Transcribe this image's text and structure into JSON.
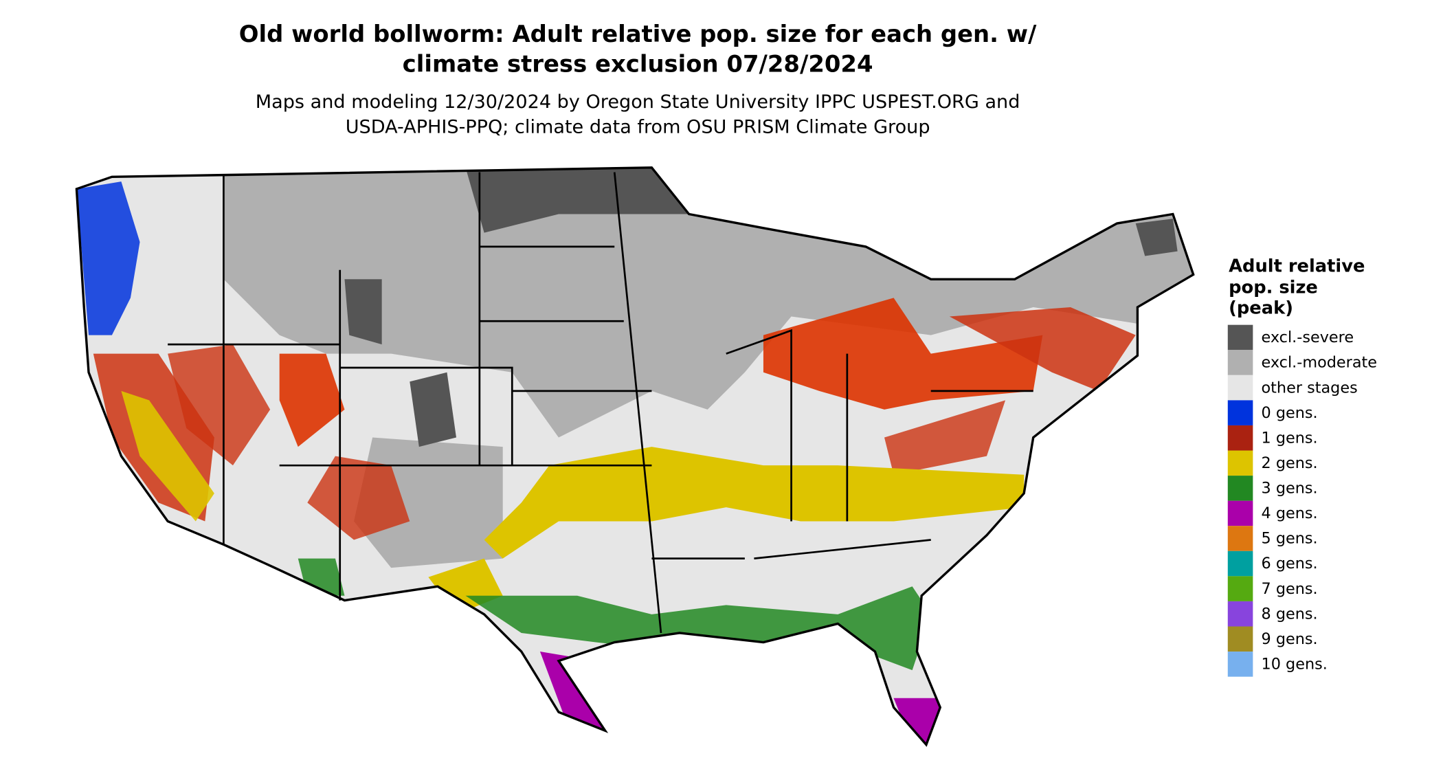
{
  "title_lines": [
    "Old world bollworm: Adult relative pop. size for each gen. w/",
    "climate stress exclusion 07/28/2024"
  ],
  "subtitle_lines": [
    "Maps and modeling 12/30/2024 by Oregon State University IPPC USPEST.ORG and",
    "USDA-APHIS-PPQ; climate data from OSU PRISM Climate Group"
  ],
  "legend": {
    "title_lines": [
      "Adult relative",
      "pop. size",
      "(peak)"
    ],
    "items": [
      {
        "label": "excl.-severe",
        "color": "#555555"
      },
      {
        "label": "excl.-moderate",
        "color": "#b0b0b0"
      },
      {
        "label": "other stages",
        "color": "#e6e6e6"
      },
      {
        "label": "0 gens.",
        "color": "#0033dd"
      },
      {
        "label": "1 gens.",
        "color": "#aa2211"
      },
      {
        "label": "2 gens.",
        "color": "#ddc400"
      },
      {
        "label": "3 gens.",
        "color": "#228822"
      },
      {
        "label": "4 gens.",
        "color": "#aa00aa"
      },
      {
        "label": "5 gens.",
        "color": "#dd7711"
      },
      {
        "label": "6 gens.",
        "color": "#00a0a0"
      },
      {
        "label": "7 gens.",
        "color": "#55aa11"
      },
      {
        "label": "8 gens.",
        "color": "#8844dd"
      },
      {
        "label": "9 gens.",
        "color": "#a08c22"
      },
      {
        "label": "10 gens.",
        "color": "#77b0ee"
      }
    ]
  }
}
